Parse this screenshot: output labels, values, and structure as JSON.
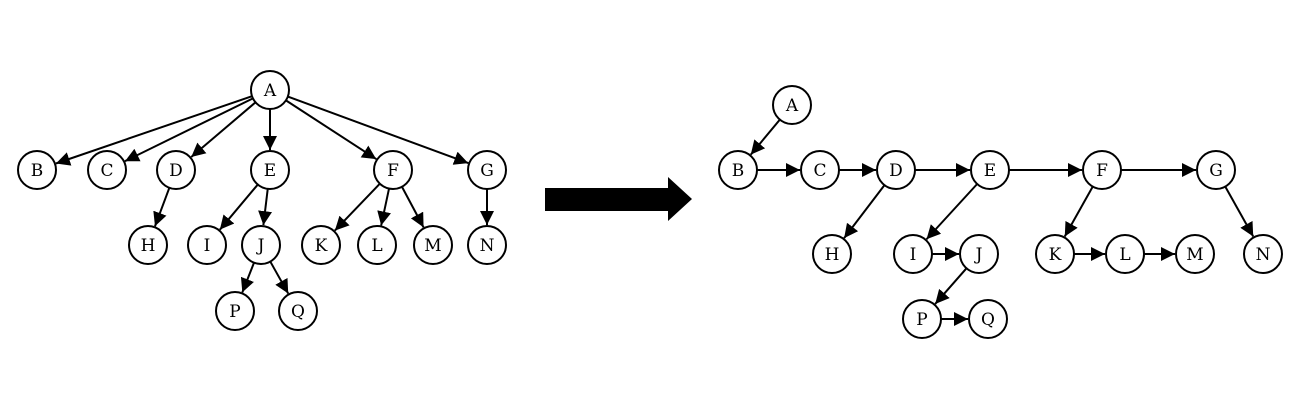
{
  "colors": {
    "stroke": "#000000",
    "node_fill": "#ffffff",
    "background": "#ffffff"
  },
  "left_tree": {
    "nodes": [
      "A",
      "B",
      "C",
      "D",
      "E",
      "F",
      "G",
      "H",
      "I",
      "J",
      "K",
      "L",
      "M",
      "N",
      "P",
      "Q"
    ],
    "edges": [
      [
        "A",
        "B"
      ],
      [
        "A",
        "C"
      ],
      [
        "A",
        "D"
      ],
      [
        "A",
        "E"
      ],
      [
        "A",
        "F"
      ],
      [
        "A",
        "G"
      ],
      [
        "D",
        "H"
      ],
      [
        "E",
        "I"
      ],
      [
        "E",
        "J"
      ],
      [
        "F",
        "K"
      ],
      [
        "F",
        "L"
      ],
      [
        "F",
        "M"
      ],
      [
        "G",
        "N"
      ],
      [
        "J",
        "P"
      ],
      [
        "J",
        "Q"
      ]
    ]
  },
  "right_tree": {
    "nodes": [
      "A",
      "B",
      "C",
      "D",
      "E",
      "F",
      "G",
      "H",
      "I",
      "J",
      "K",
      "L",
      "M",
      "N",
      "P",
      "Q"
    ],
    "edges": [
      [
        "A",
        "B"
      ],
      [
        "B",
        "C"
      ],
      [
        "C",
        "D"
      ],
      [
        "D",
        "E"
      ],
      [
        "E",
        "F"
      ],
      [
        "F",
        "G"
      ],
      [
        "D",
        "H"
      ],
      [
        "E",
        "I"
      ],
      [
        "I",
        "J"
      ],
      [
        "J",
        "P"
      ],
      [
        "P",
        "Q"
      ],
      [
        "F",
        "K"
      ],
      [
        "K",
        "L"
      ],
      [
        "L",
        "M"
      ],
      [
        "G",
        "N"
      ]
    ]
  }
}
